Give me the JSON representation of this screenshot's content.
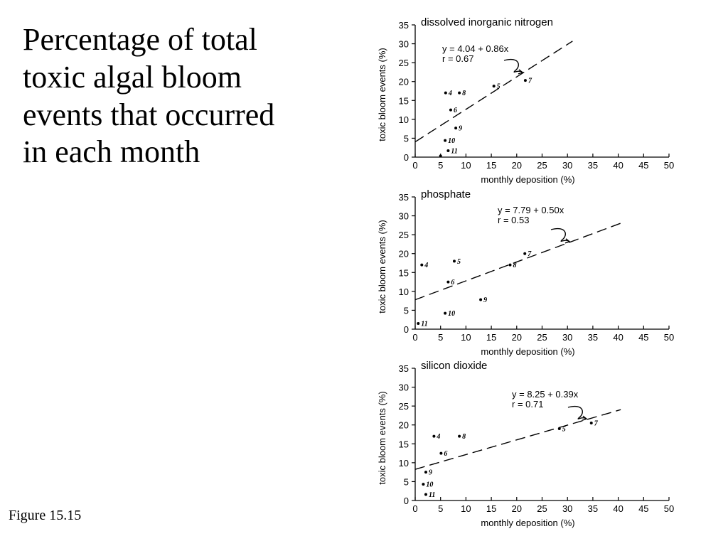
{
  "slide": {
    "title": "Percentage of total\ntoxic algal bloom\nevents that occurred\nin each month",
    "caption": "Figure 15.15"
  },
  "chart_data": [
    {
      "type": "scatter",
      "title": "dissolved inorganic nitrogen",
      "xlabel": "monthly deposition (%)",
      "ylabel": "toxic bloom events (%)",
      "xlim": [
        0,
        50
      ],
      "ylim": [
        0,
        35
      ],
      "xticks": [
        0,
        5,
        10,
        15,
        20,
        25,
        30,
        35,
        40,
        45,
        50
      ],
      "yticks": [
        0,
        5,
        10,
        15,
        20,
        25,
        30,
        35
      ],
      "points": [
        {
          "label": "4",
          "x": 6.0,
          "y": 17.0
        },
        {
          "label": "8",
          "x": 8.7,
          "y": 17.0
        },
        {
          "label": "5",
          "x": 15.5,
          "y": 18.8
        },
        {
          "label": "7",
          "x": 21.7,
          "y": 20.3
        },
        {
          "label": "6",
          "x": 7.0,
          "y": 12.5
        },
        {
          "label": "9",
          "x": 8.0,
          "y": 7.7
        },
        {
          "label": "10",
          "x": 5.9,
          "y": 4.4
        },
        {
          "label": "11",
          "x": 6.5,
          "y": 1.7
        },
        {
          "label": "",
          "x": 5.0,
          "y": 0.3
        }
      ],
      "fit": {
        "intercept": 4.04,
        "slope": 0.86,
        "x_end": 31
      },
      "equation": "y = 4.04 + 0.86x",
      "r_text": "r = 0.67"
    },
    {
      "type": "scatter",
      "title": "phosphate",
      "xlabel": "monthly deposition (%)",
      "ylabel": "toxic bloom events (%)",
      "xlim": [
        0,
        50
      ],
      "ylim": [
        0,
        35
      ],
      "xticks": [
        0,
        5,
        10,
        15,
        20,
        25,
        30,
        35,
        40,
        45,
        50
      ],
      "yticks": [
        0,
        5,
        10,
        15,
        20,
        25,
        30,
        35
      ],
      "points": [
        {
          "label": "4",
          "x": 1.3,
          "y": 17.0
        },
        {
          "label": "5",
          "x": 7.7,
          "y": 18.0
        },
        {
          "label": "7",
          "x": 21.6,
          "y": 20.0
        },
        {
          "label": "8",
          "x": 18.7,
          "y": 17.0
        },
        {
          "label": "6",
          "x": 6.5,
          "y": 12.5
        },
        {
          "label": "9",
          "x": 12.9,
          "y": 7.8
        },
        {
          "label": "10",
          "x": 5.9,
          "y": 4.2
        },
        {
          "label": "11",
          "x": 0.6,
          "y": 1.5
        }
      ],
      "fit": {
        "intercept": 7.79,
        "slope": 0.5,
        "x_end": 40.5
      },
      "equation": "y = 7.79 + 0.50x",
      "r_text": "r = 0.53"
    },
    {
      "type": "scatter",
      "title": "silicon dioxide",
      "xlabel": "monthly deposition (%)",
      "ylabel": "toxic bloom events (%)",
      "xlim": [
        0,
        50
      ],
      "ylim": [
        0,
        35
      ],
      "xticks": [
        0,
        5,
        10,
        15,
        20,
        25,
        30,
        35,
        40,
        45,
        50
      ],
      "yticks": [
        0,
        5,
        10,
        15,
        20,
        25,
        30,
        35
      ],
      "points": [
        {
          "label": "4",
          "x": 3.7,
          "y": 17.0
        },
        {
          "label": "8",
          "x": 8.7,
          "y": 17.0
        },
        {
          "label": "5",
          "x": 28.4,
          "y": 19.0
        },
        {
          "label": "7",
          "x": 34.7,
          "y": 20.5
        },
        {
          "label": "6",
          "x": 5.1,
          "y": 12.5
        },
        {
          "label": "9",
          "x": 2.1,
          "y": 7.5
        },
        {
          "label": "10",
          "x": 1.6,
          "y": 4.3
        },
        {
          "label": "11",
          "x": 2.1,
          "y": 1.6
        }
      ],
      "fit": {
        "intercept": 8.25,
        "slope": 0.39,
        "x_end": 40.5
      },
      "equation": "y = 8.25 + 0.39x",
      "r_text": "r = 0.71"
    }
  ]
}
